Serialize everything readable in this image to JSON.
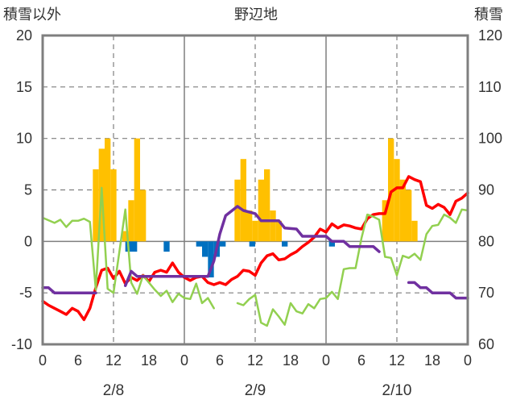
{
  "chart_data": {
    "type": "bar+line",
    "title": "野辺地",
    "left_axis_label": "積雪以外",
    "right_axis_label": "積雪",
    "y_left": {
      "min": -10,
      "max": 20,
      "ticks": [
        -10,
        -5,
        0,
        5,
        10,
        15,
        20
      ]
    },
    "y_right": {
      "min": 60,
      "max": 120,
      "ticks": [
        60,
        70,
        80,
        90,
        100,
        110,
        120
      ]
    },
    "x_hour_ticks": [
      "0",
      "6",
      "12",
      "18",
      "0",
      "6",
      "12",
      "18",
      "0",
      "6",
      "12",
      "18",
      "0"
    ],
    "x_hours_total": 72,
    "day_labels": [
      "2/8",
      "2/9",
      "2/10"
    ],
    "grid": "dashed vertical at 12h, solid day dividers, dashed horizontal every 5",
    "colors": {
      "bars_positive": "#FFC000",
      "bars_negative": "#0070C0",
      "red": "#FF0000",
      "green": "#92D050",
      "purple": "#7030A0",
      "frame": "#7F7F7F"
    },
    "bars": [
      {
        "x": 9,
        "v": 7
      },
      {
        "x": 10,
        "v": 9
      },
      {
        "x": 11,
        "v": 10
      },
      {
        "x": 12,
        "v": 7
      },
      {
        "x": 14,
        "v": 1
      },
      {
        "x": 15,
        "v": 4
      },
      {
        "x": 16,
        "v": 10
      },
      {
        "x": 17,
        "v": 5
      },
      {
        "x": 14.5,
        "v": -1
      },
      {
        "x": 15.5,
        "v": -1
      },
      {
        "x": 21,
        "v": -1
      },
      {
        "x": 26.5,
        "v": -0.5
      },
      {
        "x": 27.5,
        "v": -1.5
      },
      {
        "x": 28.5,
        "v": -3.5
      },
      {
        "x": 29.5,
        "v": -1.5
      },
      {
        "x": 30.5,
        "v": -0.5
      },
      {
        "x": 33,
        "v": 6
      },
      {
        "x": 34,
        "v": 8
      },
      {
        "x": 35,
        "v": 3
      },
      {
        "x": 36,
        "v": 2
      },
      {
        "x": 37,
        "v": 6
      },
      {
        "x": 38,
        "v": 7
      },
      {
        "x": 39,
        "v": 3
      },
      {
        "x": 40,
        "v": 2
      },
      {
        "x": 35.5,
        "v": -0.5
      },
      {
        "x": 41,
        "v": -0.5
      },
      {
        "x": 49,
        "v": -0.5
      },
      {
        "x": 58,
        "v": 4
      },
      {
        "x": 59,
        "v": 10
      },
      {
        "x": 60,
        "v": 8
      },
      {
        "x": 61,
        "v": 6
      },
      {
        "x": 62,
        "v": 5
      },
      {
        "x": 63,
        "v": 2
      }
    ],
    "series": [
      {
        "color": "red",
        "points": [
          [
            0,
            -5.8
          ],
          [
            1,
            -6.2
          ],
          [
            2,
            -6.5
          ],
          [
            3,
            -6.8
          ],
          [
            4,
            -7.1
          ],
          [
            5,
            -6.5
          ],
          [
            6,
            -6.8
          ],
          [
            7,
            -7.6
          ],
          [
            8,
            -6.5
          ],
          [
            9,
            -4.5
          ],
          [
            10,
            -2.8
          ],
          [
            11,
            -2.6
          ],
          [
            12,
            -3.6
          ],
          [
            13,
            -2.9
          ],
          [
            14,
            -4.1
          ],
          [
            15,
            -3.5
          ],
          [
            16,
            -3.8
          ],
          [
            17,
            -3.3
          ],
          [
            18,
            -3.9
          ],
          [
            19,
            -3.0
          ],
          [
            20,
            -2.8
          ],
          [
            21,
            -3.0
          ],
          [
            22,
            -2.1
          ],
          [
            23,
            -3.0
          ],
          [
            24,
            -3.5
          ],
          [
            25,
            -3.8
          ],
          [
            26,
            -3.5
          ],
          [
            27,
            -3.4
          ],
          [
            28,
            -4.0
          ],
          [
            29,
            -4.2
          ],
          [
            30,
            -4.0
          ],
          [
            31,
            -4.2
          ],
          [
            32,
            -3.7
          ],
          [
            33,
            -3.4
          ],
          [
            34,
            -2.8
          ],
          [
            35,
            -2.9
          ],
          [
            36,
            -3.3
          ],
          [
            37,
            -2.1
          ],
          [
            38,
            -1.4
          ],
          [
            39,
            -1.2
          ],
          [
            40,
            -1.8
          ],
          [
            41,
            -1.7
          ],
          [
            42,
            -1.3
          ],
          [
            43,
            -1.0
          ],
          [
            44,
            -0.5
          ],
          [
            45,
            -0.1
          ],
          [
            46,
            0.4
          ],
          [
            47,
            1.2
          ],
          [
            48,
            0.9
          ],
          [
            49,
            1.7
          ],
          [
            50,
            1.3
          ],
          [
            51,
            1.6
          ],
          [
            52,
            1.5
          ],
          [
            53,
            1.3
          ],
          [
            54,
            1.2
          ],
          [
            55,
            2.2
          ],
          [
            56,
            2.6
          ],
          [
            57,
            2.7
          ],
          [
            58,
            2.7
          ],
          [
            59,
            4.8
          ],
          [
            60,
            5.2
          ],
          [
            61,
            5.2
          ],
          [
            62,
            6.3
          ],
          [
            63,
            6.0
          ],
          [
            64,
            5.8
          ],
          [
            65,
            3.5
          ],
          [
            66,
            3.2
          ],
          [
            67,
            3.6
          ],
          [
            68,
            3.3
          ],
          [
            69,
            2.6
          ],
          [
            70,
            3.9
          ],
          [
            71,
            4.2
          ],
          [
            72,
            4.7
          ]
        ]
      },
      {
        "color": "green",
        "segments": [
          [
            [
              0,
              2.3
            ],
            [
              2,
              1.8
            ],
            [
              3,
              2.1
            ],
            [
              4,
              1.4
            ],
            [
              5,
              2.0
            ],
            [
              6,
              2.0
            ],
            [
              7,
              2.2
            ],
            [
              8,
              1.9
            ],
            [
              9,
              -4.7
            ],
            [
              10,
              5.2
            ],
            [
              11,
              -4.6
            ],
            [
              12,
              -5.0
            ],
            [
              13,
              -1.0
            ],
            [
              14,
              3.1
            ],
            [
              15,
              -4.0
            ],
            [
              16,
              -5.1
            ],
            [
              17,
              -3.3
            ],
            [
              18,
              -4.0
            ],
            [
              19,
              -4.7
            ],
            [
              20,
              -5.3
            ],
            [
              21,
              -4.8
            ],
            [
              22,
              -5.9
            ],
            [
              23,
              -5.1
            ],
            [
              24,
              -5.5
            ],
            [
              25,
              -5.6
            ],
            [
              26,
              -4.1
            ],
            [
              27,
              -6.0
            ],
            [
              28,
              -5.5
            ],
            [
              29,
              -6.5
            ]
          ],
          [
            [
              33,
              -6.0
            ],
            [
              34,
              -6.2
            ],
            [
              35,
              -5.6
            ],
            [
              36,
              -5.2
            ],
            [
              37,
              -7.9
            ],
            [
              38,
              -8.2
            ],
            [
              39,
              -6.6
            ],
            [
              40,
              -7.3
            ],
            [
              41,
              -8.1
            ],
            [
              42,
              -6.0
            ],
            [
              43,
              -6.8
            ],
            [
              44,
              -7.0
            ],
            [
              45,
              -6.1
            ],
            [
              46,
              -6.5
            ],
            [
              47,
              -5.6
            ],
            [
              48,
              -5.5
            ],
            [
              49,
              -4.9
            ],
            [
              50,
              -5.6
            ],
            [
              51,
              -2.7
            ],
            [
              52,
              -2.6
            ],
            [
              53,
              -2.6
            ],
            [
              54,
              0.3
            ],
            [
              55,
              2.6
            ],
            [
              56,
              2.4
            ],
            [
              57,
              2.1
            ],
            [
              58,
              -1.5
            ],
            [
              59,
              -1.6
            ],
            [
              60,
              -3.3
            ],
            [
              61,
              -1.4
            ],
            [
              62,
              -1.6
            ],
            [
              63,
              -1.2
            ],
            [
              64,
              -1.8
            ],
            [
              65,
              0.7
            ],
            [
              66,
              1.5
            ],
            [
              67,
              1.6
            ],
            [
              68,
              2.6
            ],
            [
              69,
              2.3
            ],
            [
              70,
              1.8
            ],
            [
              71,
              3.1
            ],
            [
              72,
              3.0
            ]
          ]
        ]
      },
      {
        "color": "purple",
        "segments": [
          [
            [
              0,
              -4.5
            ],
            [
              1,
              -4.5
            ],
            [
              2,
              -5.0
            ],
            [
              9,
              -5.0
            ]
          ],
          [
            [
              14,
              -4.3
            ],
            [
              15,
              -2.9
            ],
            [
              16,
              -3.4
            ],
            [
              28,
              -3.4
            ],
            [
              29,
              -1.9
            ],
            [
              30,
              0.7
            ],
            [
              31,
              2.5
            ],
            [
              33,
              3.4
            ],
            [
              34,
              3.0
            ],
            [
              36,
              2.7
            ],
            [
              37,
              2.0
            ],
            [
              40,
              2.0
            ],
            [
              41,
              1.3
            ],
            [
              43,
              1.2
            ],
            [
              44,
              0.5
            ],
            [
              48,
              0.5
            ],
            [
              49,
              0.0
            ],
            [
              51,
              0.0
            ],
            [
              52,
              -0.5
            ],
            [
              56,
              -0.5
            ],
            [
              57,
              -1.0
            ]
          ],
          [
            [
              62,
              -4.0
            ],
            [
              63,
              -4.0
            ],
            [
              64,
              -4.5
            ],
            [
              65,
              -4.5
            ],
            [
              66,
              -5.0
            ],
            [
              69,
              -5.0
            ],
            [
              70,
              -5.5
            ],
            [
              72,
              -5.5
            ]
          ]
        ]
      }
    ]
  }
}
